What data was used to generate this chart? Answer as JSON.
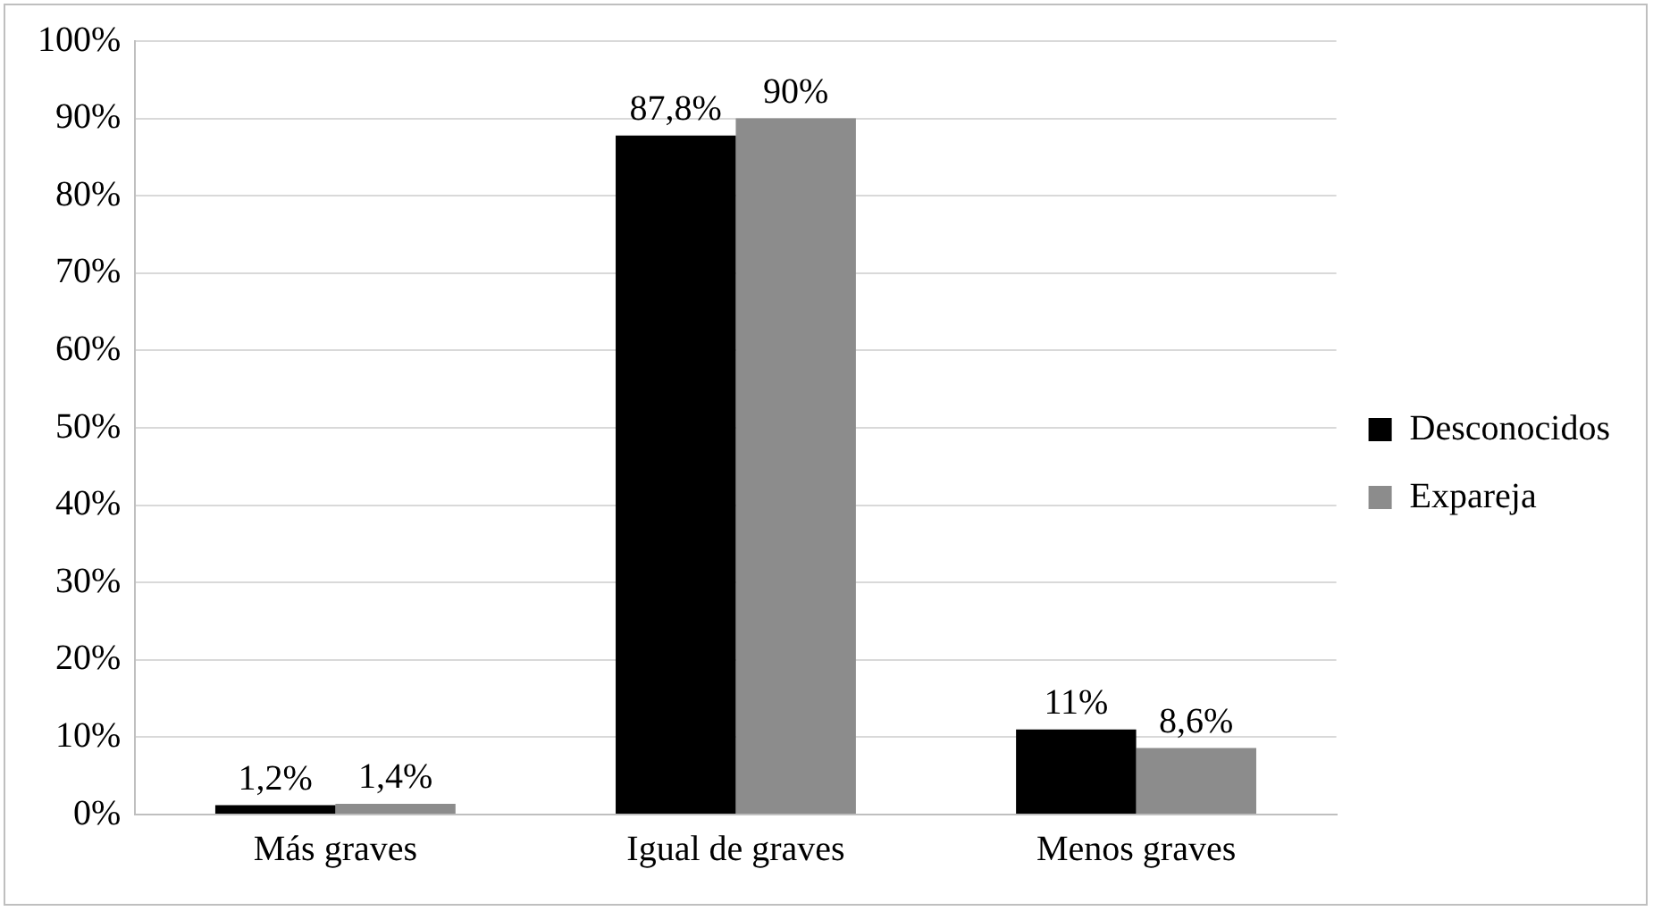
{
  "chart_data": {
    "type": "bar",
    "categories": [
      "Más graves",
      "Igual de graves",
      "Menos graves"
    ],
    "series": [
      {
        "name": "Desconocidos",
        "color": "#000000",
        "values": [
          1.2,
          87.8,
          11
        ],
        "value_labels": [
          "1,2%",
          "87,8%",
          "11%"
        ]
      },
      {
        "name": "Expareja",
        "color": "#8c8c8c",
        "values": [
          1.4,
          90,
          8.6
        ],
        "value_labels": [
          "1,4%",
          "90%",
          "8,6%"
        ]
      }
    ],
    "ylim": [
      0,
      100
    ],
    "yticks": [
      {
        "value": 0,
        "label": "0%"
      },
      {
        "value": 10,
        "label": "10%"
      },
      {
        "value": 20,
        "label": "20%"
      },
      {
        "value": 30,
        "label": "30%"
      },
      {
        "value": 40,
        "label": "40%"
      },
      {
        "value": 50,
        "label": "50%"
      },
      {
        "value": 60,
        "label": "60%"
      },
      {
        "value": 70,
        "label": "70%"
      },
      {
        "value": 80,
        "label": "80%"
      },
      {
        "value": 90,
        "label": "90%"
      },
      {
        "value": 100,
        "label": "100%"
      }
    ],
    "grid": "y",
    "legend": "right"
  }
}
